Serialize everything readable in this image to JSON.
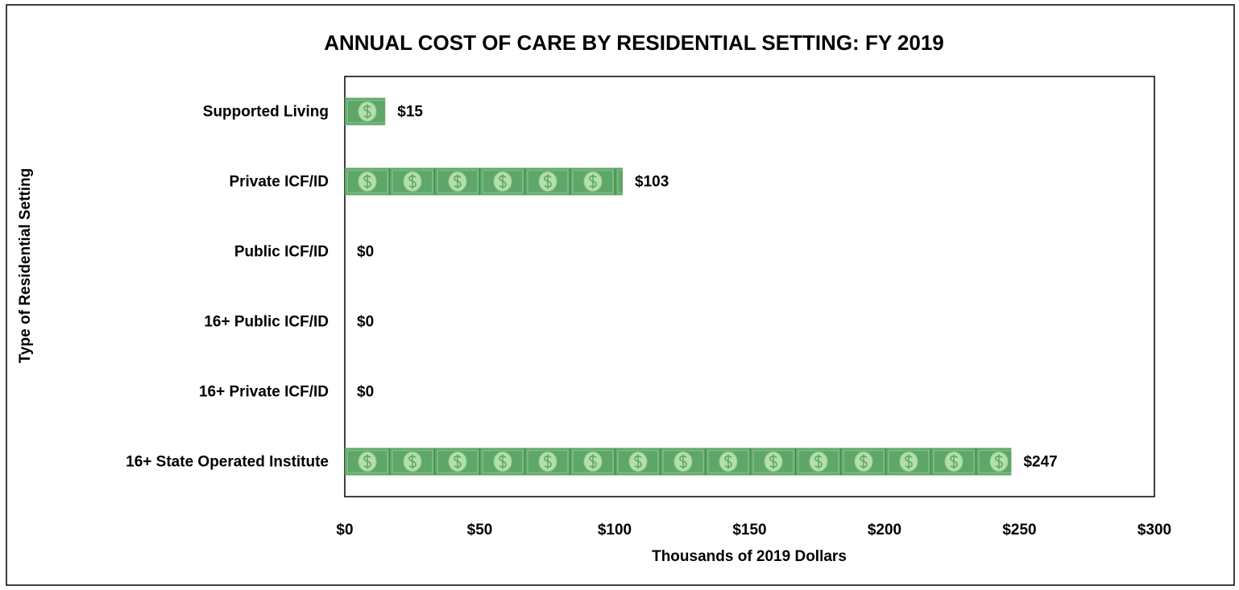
{
  "chart_data": {
    "type": "bar",
    "orientation": "horizontal",
    "title": "ANNUAL COST OF CARE BY RESIDENTIAL SETTING: FY 2019",
    "xlabel": "Thousands of 2019 Dollars",
    "ylabel": "Type of Residential Setting",
    "categories": [
      "Supported Living",
      "Private ICF/ID",
      "Public ICF/ID",
      "16+ Public ICF/ID",
      "16+ Private ICF/ID",
      "16+ State Operated Institute"
    ],
    "values": [
      15,
      103,
      0,
      0,
      0,
      247
    ],
    "value_labels": [
      "$15",
      "$103",
      "$0",
      "$0",
      "$0",
      "$247"
    ],
    "color": "#5ea66a",
    "xlim": [
      0,
      300
    ],
    "xticks": [
      {
        "value": 0,
        "label": "$0"
      },
      {
        "value": 50,
        "label": "$50"
      },
      {
        "value": 100,
        "label": "$100"
      },
      {
        "value": 150,
        "label": "$150"
      },
      {
        "value": 200,
        "label": "$200"
      },
      {
        "value": 250,
        "label": "$250"
      },
      {
        "value": 300,
        "label": "$300"
      }
    ]
  }
}
